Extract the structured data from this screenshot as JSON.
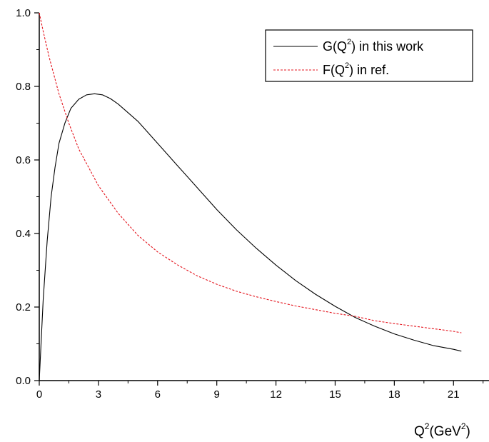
{
  "chart_data": {
    "type": "line",
    "xlabel": {
      "base": "Q",
      "sup1": "2",
      "mid": "(GeV",
      "sup2": "2",
      "end": ")"
    },
    "ylabel": "",
    "xlim": [
      0,
      22.8
    ],
    "ylim": [
      0.0,
      1.0
    ],
    "xticks": [
      0,
      3,
      6,
      9,
      12,
      15,
      18,
      21
    ],
    "xtick_labels": [
      "0",
      "3",
      "6",
      "9",
      "12",
      "15",
      "18",
      "21"
    ],
    "yticks": [
      0.0,
      0.2,
      0.4,
      0.6,
      0.8,
      1.0
    ],
    "ytick_labels": [
      "0.0",
      "0.2",
      "0.4",
      "0.6",
      "0.8",
      "1.0"
    ],
    "grid": false,
    "legend_position": "top-right",
    "series": [
      {
        "name": {
          "prefix": "G(Q",
          "sup": "2",
          "suffix": ") in this work"
        },
        "color": "#000000",
        "style": "solid",
        "x": [
          0,
          0.2,
          0.4,
          0.6,
          0.8,
          1.0,
          1.3,
          1.6,
          2.0,
          2.4,
          2.8,
          3.2,
          3.6,
          4.0,
          5.0,
          6.0,
          7.0,
          8.0,
          9.0,
          10.0,
          11.0,
          12.0,
          13.0,
          14.0,
          15.0,
          16.0,
          17.0,
          18.0,
          19.0,
          20.0,
          21.0,
          21.4
        ],
        "y": [
          0.0,
          0.22,
          0.38,
          0.5,
          0.58,
          0.645,
          0.7,
          0.74,
          0.765,
          0.777,
          0.78,
          0.777,
          0.767,
          0.752,
          0.705,
          0.645,
          0.585,
          0.525,
          0.465,
          0.41,
          0.36,
          0.314,
          0.272,
          0.235,
          0.202,
          0.172,
          0.148,
          0.127,
          0.11,
          0.095,
          0.085,
          0.08
        ]
      },
      {
        "name": {
          "prefix": "F(Q",
          "sup": "2",
          "suffix": ") in ref."
        },
        "color": "#e4131c",
        "style": "dashed",
        "x": [
          0,
          0.2,
          0.5,
          1.0,
          1.5,
          2.0,
          3.0,
          4.0,
          5.0,
          6.0,
          7.0,
          8.0,
          9.0,
          10.0,
          11.0,
          12.0,
          13.0,
          14.0,
          15.0,
          16.0,
          17.0,
          18.0,
          19.0,
          20.0,
          21.0,
          21.4
        ],
        "y": [
          1.0,
          0.95,
          0.88,
          0.78,
          0.7,
          0.63,
          0.53,
          0.455,
          0.395,
          0.35,
          0.315,
          0.285,
          0.262,
          0.243,
          0.228,
          0.215,
          0.203,
          0.193,
          0.183,
          0.175,
          0.163,
          0.155,
          0.148,
          0.141,
          0.134,
          0.13
        ]
      }
    ]
  }
}
